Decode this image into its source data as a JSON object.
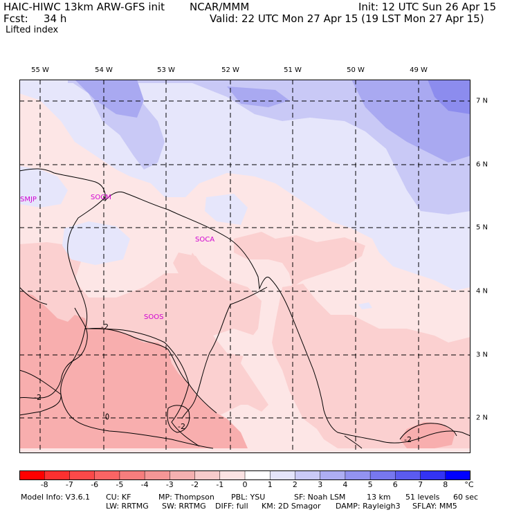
{
  "header": {
    "model": "HAIC-HIWC 13km ARW-GFS init",
    "org": "NCAR/MMM",
    "init": "Init: 12 UTC Sun 26 Apr 15",
    "fcst_label": "Fcst:",
    "fcst_value": "34 h",
    "valid": "Valid: 22 UTC Mon 27 Apr 15 (19 LST Mon 27 Apr 15)",
    "field": "Lifted index"
  },
  "map": {
    "lon_labels": [
      "55 W",
      "54 W",
      "53 W",
      "52 W",
      "51 W",
      "50 W",
      "49 W"
    ],
    "lat_labels": [
      "7 N",
      "6 N",
      "5 N",
      "4 N",
      "3 N",
      "2 N"
    ],
    "stations": [
      "SMJP",
      "SOCM",
      "SOCA",
      "SOOS"
    ],
    "contour_labels": [
      "-2",
      "-2",
      "-2",
      "-2"
    ],
    "colors": {
      "neg1": "#fde6e6",
      "neg2": "#fbd0d0",
      "neg3": "#f8aeae",
      "pos1": "#e6e6fb",
      "pos2": "#c9c9f6",
      "pos3": "#a9a9f1",
      "pos4": "#8c8cee"
    }
  },
  "colorbar": {
    "ticks": [
      "-8",
      "-7",
      "-6",
      "-5",
      "-4",
      "-3",
      "-2",
      "-1",
      "0",
      "1",
      "2",
      "3",
      "4",
      "5",
      "6",
      "7",
      "8"
    ],
    "unit": "°C",
    "colors": [
      "#ff0000",
      "#fc3030",
      "#fb4949",
      "#f96464",
      "#f77d7d",
      "#f59696",
      "#f5b0b0",
      "#f7cbcb",
      "#fbe3e3",
      "#ffffff",
      "#e4e4fb",
      "#cacaf7",
      "#aeaef3",
      "#9393f1",
      "#7777ef",
      "#5b5bef",
      "#3333f3",
      "#0000ff"
    ]
  },
  "footer": {
    "line1": [
      "Model Info: V3.6.1",
      "CU: KF",
      "MP: Thompson",
      "PBL: YSU",
      "SF: Noah LSM",
      "13 km",
      "51 levels",
      "60 sec"
    ],
    "line2": [
      "LW: RRTMG",
      "SW: RRTMG",
      "DIFF: full",
      "KM: 2D Smagor",
      "DAMP: Rayleigh3",
      "SFLAY: MM5"
    ]
  }
}
